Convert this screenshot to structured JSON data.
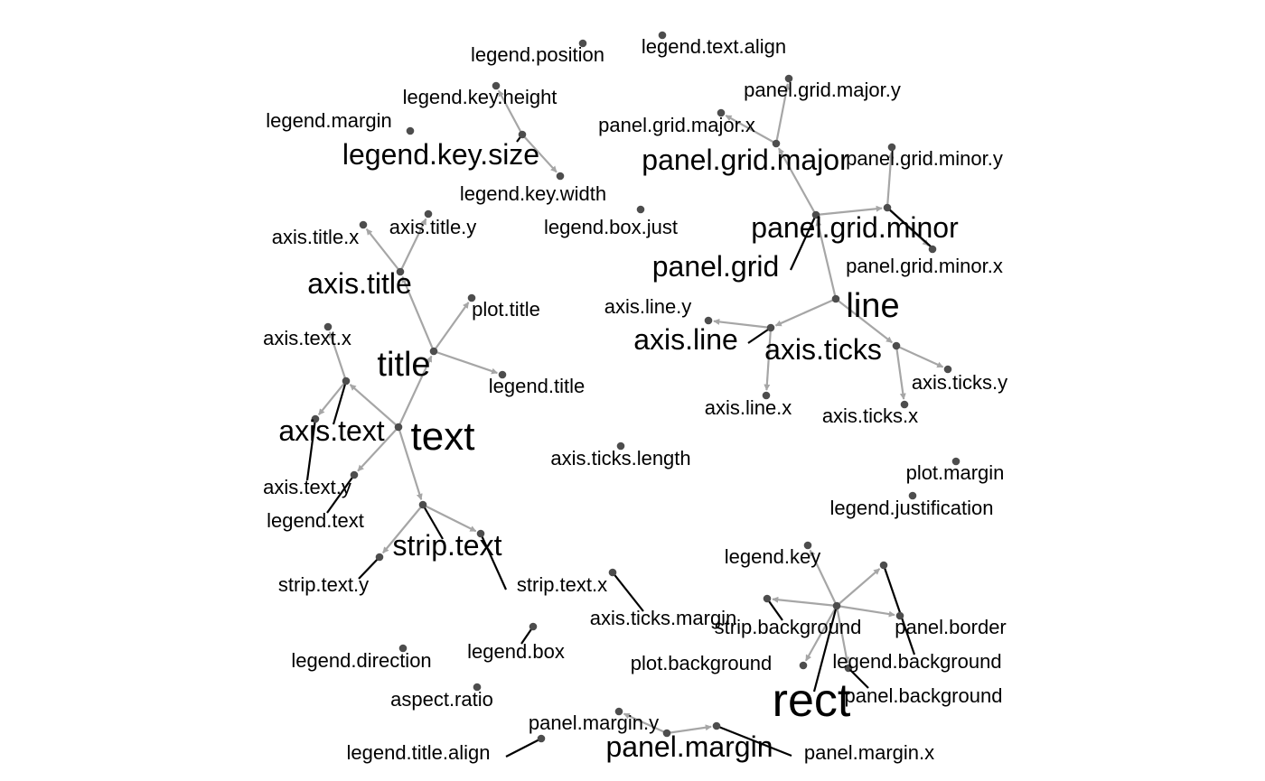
{
  "graph": {
    "colors": {
      "background": "#ffffff",
      "edge": "#a6a6a6",
      "node": "#4d4d4d",
      "leader": "#000000",
      "text": "#000000"
    },
    "nodes": {
      "legend_position": {
        "label": "legend.position"
      },
      "legend_text_align": {
        "label": "legend.text.align"
      },
      "legend_key_height": {
        "label": "legend.key.height"
      },
      "legend_margin": {
        "label": "legend.margin"
      },
      "legend_key_size": {
        "label": "legend.key.size"
      },
      "legend_key_width": {
        "label": "legend.key.width"
      },
      "legend_box_just": {
        "label": "legend.box.just"
      },
      "panel_grid_major_y": {
        "label": "panel.grid.major.y"
      },
      "panel_grid_major_x": {
        "label": "panel.grid.major.x"
      },
      "panel_grid_major": {
        "label": "panel.grid.major"
      },
      "panel_grid_minor_y": {
        "label": "panel.grid.minor.y"
      },
      "panel_grid_minor": {
        "label": "panel.grid.minor"
      },
      "panel_grid": {
        "label": "panel.grid"
      },
      "panel_grid_minor_x": {
        "label": "panel.grid.minor.x"
      },
      "axis_title_x": {
        "label": "axis.title.x"
      },
      "axis_title_y": {
        "label": "axis.title.y"
      },
      "axis_title": {
        "label": "axis.title"
      },
      "plot_title": {
        "label": "plot.title"
      },
      "axis_text_x": {
        "label": "axis.text.x"
      },
      "title": {
        "label": "title"
      },
      "legend_title": {
        "label": "legend.title"
      },
      "axis_text": {
        "label": "axis.text"
      },
      "text": {
        "label": "text"
      },
      "axis_text_y": {
        "label": "axis.text.y"
      },
      "legend_text": {
        "label": "legend.text"
      },
      "strip_text": {
        "label": "strip.text"
      },
      "strip_text_y": {
        "label": "strip.text.y"
      },
      "strip_text_x": {
        "label": "strip.text.x"
      },
      "axis_line_y": {
        "label": "axis.line.y"
      },
      "line": {
        "label": "line"
      },
      "axis_line": {
        "label": "axis.line"
      },
      "axis_ticks": {
        "label": "axis.ticks"
      },
      "axis_ticks_y": {
        "label": "axis.ticks.y"
      },
      "axis_line_x": {
        "label": "axis.line.x"
      },
      "axis_ticks_x": {
        "label": "axis.ticks.x"
      },
      "axis_ticks_length": {
        "label": "axis.ticks.length"
      },
      "plot_margin": {
        "label": "plot.margin"
      },
      "legend_justification": {
        "label": "legend.justification"
      },
      "legend_key": {
        "label": "legend.key"
      },
      "axis_ticks_margin": {
        "label": "axis.ticks.margin"
      },
      "strip_background": {
        "label": "strip.background"
      },
      "panel_border": {
        "label": "panel.border"
      },
      "legend_box": {
        "label": "legend.box"
      },
      "legend_direction": {
        "label": "legend.direction"
      },
      "plot_background": {
        "label": "plot.background"
      },
      "legend_background": {
        "label": "legend.background"
      },
      "aspect_ratio": {
        "label": "aspect.ratio"
      },
      "panel_background": {
        "label": "panel.background"
      },
      "rect": {
        "label": "rect"
      },
      "panel_margin_y": {
        "label": "panel.margin.y"
      },
      "legend_title_align": {
        "label": "legend.title.align"
      },
      "panel_margin": {
        "label": "panel.margin"
      },
      "panel_margin_x": {
        "label": "panel.margin.x"
      }
    },
    "edges": [
      [
        "legend_key_size",
        "legend_key_height"
      ],
      [
        "legend_key_size",
        "legend_key_width"
      ],
      [
        "panel_grid_major",
        "panel_grid_major_x"
      ],
      [
        "panel_grid_major",
        "panel_grid_major_y"
      ],
      [
        "panel_grid_minor",
        "panel_grid_minor_y"
      ],
      [
        "panel_grid_minor",
        "panel_grid_minor_x"
      ],
      [
        "panel_grid",
        "panel_grid_major"
      ],
      [
        "panel_grid",
        "panel_grid_minor"
      ],
      [
        "line",
        "panel_grid"
      ],
      [
        "line",
        "axis_line"
      ],
      [
        "line",
        "axis_ticks"
      ],
      [
        "axis_line",
        "axis_line_y"
      ],
      [
        "axis_line",
        "axis_line_x"
      ],
      [
        "axis_ticks",
        "axis_ticks_y"
      ],
      [
        "axis_ticks",
        "axis_ticks_x"
      ],
      [
        "axis_title",
        "axis_title_x"
      ],
      [
        "axis_title",
        "axis_title_y"
      ],
      [
        "title",
        "axis_title"
      ],
      [
        "title",
        "plot_title"
      ],
      [
        "title",
        "legend_title"
      ],
      [
        "text",
        "title"
      ],
      [
        "text",
        "axis_text"
      ],
      [
        "text",
        "legend_text"
      ],
      [
        "text",
        "strip_text"
      ],
      [
        "axis_text",
        "axis_text_x"
      ],
      [
        "axis_text",
        "axis_text_y"
      ],
      [
        "strip_text",
        "strip_text_y"
      ],
      [
        "strip_text",
        "strip_text_x"
      ],
      [
        "rect",
        "legend_key"
      ],
      [
        "rect",
        "strip_background"
      ],
      [
        "rect",
        "panel_border"
      ],
      [
        "rect",
        "plot_background"
      ],
      [
        "rect",
        "legend_background"
      ],
      [
        "rect",
        "panel_background"
      ],
      [
        "panel_margin",
        "panel_margin_y"
      ],
      [
        "panel_margin",
        "panel_margin_x"
      ]
    ]
  }
}
